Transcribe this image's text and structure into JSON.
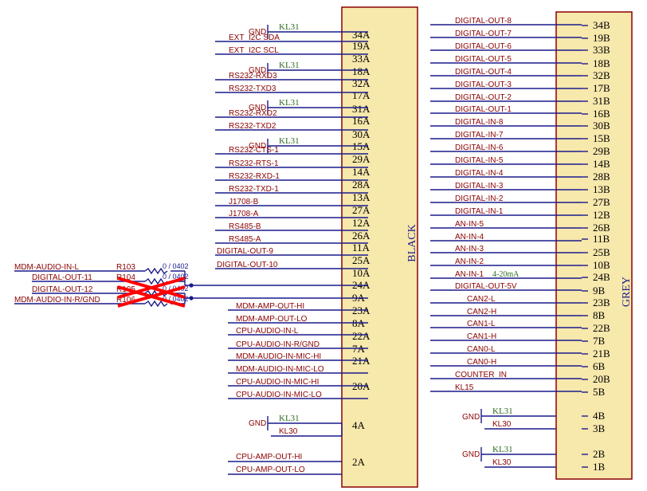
{
  "connectors": {
    "black": {
      "label": "BLACK",
      "color": "#f7e8ac"
    },
    "grey": {
      "label": "GREY",
      "color": "#f7e8ac"
    }
  },
  "colors": {
    "wire": "#1a1a8c",
    "net_label": "#8b0000",
    "gnd_net": "#2e6b1f",
    "box_border": "#8b0000",
    "cross": "#ff0000"
  },
  "black_pins": [
    "34A",
    "19A",
    "33A",
    "18A",
    "32A",
    "17A",
    "31A",
    "16A",
    "30A",
    "15A",
    "29A",
    "14A",
    "28A",
    "13A",
    "27A",
    "12A",
    "26A",
    "11A",
    "25A",
    "10A",
    "24A",
    "9A",
    "23A",
    "8A",
    "22A",
    "7A",
    "21A",
    "20A",
    "4A",
    "2A"
  ],
  "black_nets": [
    "GND",
    "KL31",
    "EXT_I2C SDA",
    "EXT_I2C SCL",
    "GND",
    "KL31",
    "RS232-RXD3",
    "RS232-TXD3",
    "GND",
    "KL31",
    "RS232-RXD2",
    "RS232-TXD2",
    "GND",
    "KL31",
    "RS232-CTS-1",
    "RS232-RTS-1",
    "RS232-RXD-1",
    "RS232-TXD-1",
    "J1708-B",
    "J1708-A",
    "RS485-B",
    "RS485-A",
    "DIGITAL-OUT-9",
    "DIGITAL-OUT-10",
    "MDM-AMP-OUT-HI",
    "MDM-AMP-OUT-LO",
    "CPU-AUDIO-IN-L",
    "CPU-AUDIO-IN-R/GND",
    "MDM-AUDIO-IN-MIC-HI",
    "MDM-AUDIO-IN-MIC-LO",
    "CPU-AUDIO-IN-MIC-HI",
    "CPU-AUDIO-IN-MIC-LO",
    "GND",
    "KL31",
    "KL30",
    "CPU-AMP-OUT-HI",
    "CPU-AMP-OUT-LO"
  ],
  "resistor_block": {
    "nets": [
      "MDM-AUDIO-IN-L",
      "DIGITAL-OUT-11",
      "DIGITAL-OUT-12",
      "MDM-AUDIO-IN-R/GND"
    ],
    "refs": [
      "R103",
      "R104",
      "R105",
      "R106"
    ],
    "value": "0 / 0402"
  },
  "grey_pins": [
    "34B",
    "19B",
    "33B",
    "18B",
    "32B",
    "17B",
    "31B",
    "16B",
    "30B",
    "15B",
    "29B",
    "14B",
    "28B",
    "13B",
    "27B",
    "12B",
    "26B",
    "11B",
    "25B",
    "10B",
    "24B",
    "9B",
    "23B",
    "8B",
    "22B",
    "7B",
    "21B",
    "6B",
    "20B",
    "5B",
    "4B",
    "3B",
    "2B",
    "1B"
  ],
  "grey_nets": [
    "DIGITAL-OUT-8",
    "DIGITAL-OUT-7",
    "DIGITAL-OUT-6",
    "DIGITAL-OUT-5",
    "DIGITAL-OUT-4",
    "DIGITAL-OUT-3",
    "DIGITAL-OUT-2",
    "DIGITAL-OUT-1",
    "DIGITAL-IN-8",
    "DIGITAL-IN-7",
    "DIGITAL-IN-6",
    "DIGITAL-IN-5",
    "DIGITAL-IN-4",
    "DIGITAL-IN-3",
    "DIGITAL-IN-2",
    "DIGITAL-IN-1",
    "AN-IN-5",
    "AN-IN-4",
    "AN-IN-3",
    "AN-IN-2",
    "AN-IN-1",
    "4-20mA",
    "DIGITAL-OUT-5V",
    "CAN2-L",
    "CAN2-H",
    "CAN1-L",
    "CAN1-H",
    "CAN0-L",
    "CAN0-H",
    "COUNTER_IN",
    "KL15",
    "GND",
    "KL31",
    "KL30",
    "GND",
    "KL31",
    "KL30"
  ]
}
